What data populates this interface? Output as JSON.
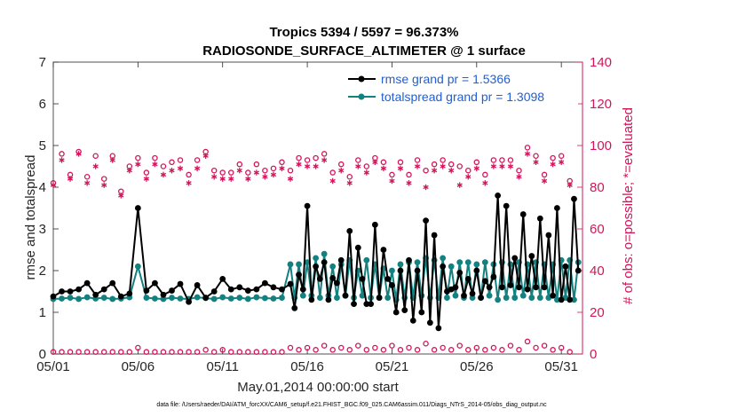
{
  "chart_data": {
    "type": "line",
    "title": [
      "Tropics 5394 / 5597 = 96.373%",
      "RADIOSONDE_SURFACE_ALTIMETER @ 1 surface"
    ],
    "xlabel": "May.01,2014 00:00:00 start",
    "ylabel_left": "rmse and totalspread",
    "ylabel_right": "# of obs: o=possible; *=evaluated",
    "x_ticks": [
      1,
      6,
      11,
      16,
      21,
      26,
      31
    ],
    "x_tick_labels": [
      "05/01",
      "05/06",
      "05/11",
      "05/16",
      "05/21",
      "05/26",
      "05/31"
    ],
    "xlim": [
      1,
      32.25
    ],
    "ylim_left": [
      0,
      7
    ],
    "y_ticks_left": [
      "0",
      "1",
      "2",
      "3",
      "4",
      "5",
      "6",
      "7"
    ],
    "ylim_right": [
      0,
      140
    ],
    "y_ticks_right": [
      "0",
      "20",
      "40",
      "60",
      "80",
      "100",
      "120",
      "140"
    ],
    "colors": {
      "rmse": "#000000",
      "spread": "#13817f",
      "obs": "#d4145a",
      "legend_text": "#1f5fd6"
    },
    "legend_placement": "top-right",
    "legend": [
      "rmse grand pr = 1.5366",
      "totalspread grand pr = 1.3098"
    ],
    "footer": "data file: /Users/raeder/DAI/ATM_forcXX/CAM6_setup/f.e21.FHIST_BGC.f09_025.CAM6assim.011/Diags_NTrS_2014-05/obs_diag_output.nc",
    "series": [
      {
        "name": "rmse",
        "x": [
          1,
          1.5,
          2,
          2.5,
          3,
          3.5,
          4,
          4.5,
          5,
          5.5,
          6,
          6.5,
          7,
          7.5,
          8,
          8.5,
          9,
          9.5,
          10,
          10.5,
          11,
          11.5,
          12,
          12.5,
          13,
          13.5,
          14,
          14.5,
          15,
          15.25,
          15.5,
          15.75,
          16,
          16.25,
          16.5,
          16.75,
          17,
          17.25,
          17.5,
          17.75,
          18,
          18.25,
          18.5,
          18.75,
          19,
          19.25,
          19.5,
          19.75,
          20,
          20.25,
          20.5,
          20.75,
          21,
          21.25,
          21.5,
          21.75,
          22,
          22.25,
          22.5,
          22.75,
          23,
          23.25,
          23.5,
          23.75,
          24,
          24.25,
          24.5,
          24.75,
          25,
          25.25,
          25.5,
          25.75,
          26,
          26.25,
          26.5,
          26.75,
          27,
          27.25,
          27.5,
          27.75,
          28,
          28.25,
          28.5,
          28.75,
          29,
          29.25,
          29.5,
          29.75,
          30,
          30.25,
          30.5,
          30.75,
          31,
          31.25,
          31.5,
          31.75,
          32
        ],
        "values": [
          1.38,
          1.5,
          1.5,
          1.55,
          1.7,
          1.42,
          1.55,
          1.7,
          1.38,
          1.45,
          3.5,
          1.52,
          1.7,
          1.42,
          1.52,
          1.68,
          1.25,
          1.65,
          1.35,
          1.5,
          1.8,
          1.55,
          1.6,
          1.52,
          1.55,
          1.7,
          1.6,
          1.55,
          1.68,
          1.1,
          1.9,
          1.55,
          3.55,
          1.3,
          2.1,
          1.8,
          2.2,
          1.3,
          1.82,
          1.7,
          2.25,
          1.4,
          2.95,
          1.2,
          2.55,
          1.8,
          1.2,
          1.2,
          3.1,
          1.35,
          2.5,
          1.8,
          1.65,
          1.0,
          2.0,
          1.05,
          2.25,
          0.8,
          2.0,
          1.0,
          3.2,
          0.75,
          2.85,
          0.62,
          2.1,
          1.5,
          1.55,
          1.6,
          1.95,
          1.4,
          1.8,
          1.45,
          2.0,
          1.35,
          1.75,
          1.6,
          1.85,
          3.8,
          1.6,
          3.55,
          1.65,
          2.3,
          1.6,
          3.35,
          1.55,
          2.35,
          1.6,
          3.25,
          1.6,
          2.85,
          1.4,
          3.5,
          1.3,
          2.1,
          1.3,
          3.72,
          2.0
        ]
      },
      {
        "name": "totalspread",
        "x": [
          1,
          1.5,
          2,
          2.5,
          3,
          3.5,
          4,
          4.5,
          5,
          5.5,
          6,
          6.5,
          7,
          7.5,
          8,
          8.5,
          9,
          9.5,
          10,
          10.5,
          11,
          11.5,
          12,
          12.5,
          13,
          13.5,
          14,
          14.5,
          15,
          15.25,
          15.5,
          15.75,
          16,
          16.25,
          16.5,
          16.75,
          17,
          17.25,
          17.5,
          17.75,
          18,
          18.25,
          18.5,
          18.75,
          19,
          19.25,
          19.5,
          19.75,
          20,
          20.25,
          20.5,
          20.75,
          21,
          21.25,
          21.5,
          21.75,
          22,
          22.25,
          22.5,
          22.75,
          23,
          23.25,
          23.5,
          23.75,
          24,
          24.25,
          24.5,
          24.75,
          25,
          25.25,
          25.5,
          25.75,
          26,
          26.25,
          26.5,
          26.75,
          27,
          27.25,
          27.5,
          27.75,
          28,
          28.25,
          28.5,
          28.75,
          29,
          29.25,
          29.5,
          29.75,
          30,
          30.25,
          30.5,
          30.75,
          31,
          31.25,
          31.5,
          31.75,
          32
        ],
        "values": [
          1.32,
          1.33,
          1.35,
          1.32,
          1.36,
          1.33,
          1.35,
          1.32,
          1.33,
          1.36,
          2.1,
          1.35,
          1.33,
          1.32,
          1.35,
          1.33,
          1.32,
          1.36,
          1.34,
          1.32,
          1.36,
          1.33,
          1.35,
          1.32,
          1.36,
          1.34,
          1.33,
          1.35,
          2.15,
          1.35,
          2.15,
          1.4,
          2.2,
          1.4,
          2.3,
          1.35,
          2.4,
          1.4,
          2.1,
          1.35,
          2.15,
          1.4,
          2.25,
          1.35,
          2.0,
          1.4,
          2.25,
          1.35,
          2.15,
          1.35,
          2.05,
          1.35,
          2.0,
          1.3,
          2.15,
          1.35,
          2.2,
          1.35,
          2.2,
          1.4,
          2.3,
          1.35,
          2.25,
          1.35,
          2.3,
          1.35,
          2.1,
          1.4,
          2.2,
          1.35,
          2.2,
          1.35,
          2.15,
          1.35,
          2.2,
          1.4,
          2.15,
          1.3,
          2.2,
          1.35,
          2.15,
          1.35,
          2.2,
          1.4,
          2.15,
          1.35,
          2.2,
          1.35,
          2.15,
          1.35,
          2.15,
          1.3,
          2.25,
          1.35,
          2.25,
          1.3,
          2.2
        ]
      },
      {
        "name": "obs_possible",
        "x": [
          1,
          1.5,
          2,
          2.5,
          3,
          3.5,
          4,
          4.5,
          5,
          5.5,
          6,
          6.5,
          7,
          7.5,
          8,
          8.5,
          9,
          9.5,
          10,
          10.5,
          11,
          11.5,
          12,
          12.5,
          13,
          13.5,
          14,
          14.5,
          15,
          15.5,
          16,
          16.5,
          17,
          17.5,
          18,
          18.5,
          19,
          19.5,
          20,
          20.5,
          21,
          21.5,
          22,
          22.5,
          23,
          23.5,
          24,
          24.5,
          25,
          25.5,
          26,
          26.5,
          27,
          27.5,
          28,
          28.5,
          29,
          29.5,
          30,
          30.5,
          31,
          31.5
        ],
        "values": [
          82,
          96,
          86,
          97,
          85,
          95,
          84,
          95,
          78,
          90,
          94,
          87,
          94,
          90,
          92,
          93,
          86,
          93,
          97,
          88,
          87,
          87,
          91,
          87,
          91,
          88,
          89,
          92,
          88,
          94,
          93,
          94,
          96,
          87,
          91,
          85,
          93,
          90,
          94,
          92,
          86,
          92,
          86,
          93,
          88,
          91,
          93,
          91,
          90,
          88,
          92,
          86,
          93,
          93,
          93,
          88,
          99,
          95,
          86,
          94,
          95,
          83
        ],
        "markers": "circle"
      },
      {
        "name": "obs_evaluated",
        "x": [
          1,
          1.5,
          2,
          2.5,
          3,
          3.5,
          4,
          4.5,
          5,
          5.5,
          6,
          6.5,
          7,
          7.5,
          8,
          8.5,
          9,
          9.5,
          10,
          10.5,
          11,
          11.5,
          12,
          12.5,
          13,
          13.5,
          14,
          14.5,
          15,
          15.5,
          16,
          16.5,
          17,
          17.5,
          18,
          18.5,
          19,
          19.5,
          20,
          20.5,
          21,
          21.5,
          22,
          22.5,
          23,
          23.5,
          24,
          24.5,
          25,
          25.5,
          26,
          26.5,
          27,
          27.5,
          28,
          28.5,
          29,
          29.5,
          30,
          30.5,
          31,
          31.5
        ],
        "values": [
          81,
          93,
          84,
          96,
          82,
          90,
          81,
          93,
          76,
          88,
          91,
          84,
          91,
          86,
          88,
          89,
          82,
          89,
          95,
          85,
          84,
          84,
          88,
          84,
          87,
          85,
          86,
          89,
          84,
          91,
          90,
          90,
          93,
          83,
          88,
          82,
          90,
          87,
          92,
          89,
          83,
          89,
          82,
          90,
          80,
          88,
          90,
          88,
          81,
          85,
          89,
          82,
          90,
          90,
          90,
          85,
          96,
          92,
          83,
          91,
          92,
          81
        ],
        "markers": "asterisk"
      },
      {
        "name": "obs_possible_bottom",
        "x": [
          1,
          1.5,
          2,
          2.5,
          3,
          3.5,
          4,
          4.5,
          5,
          5.5,
          6,
          6.5,
          7,
          7.5,
          8,
          8.5,
          9,
          9.5,
          10,
          10.5,
          11,
          11.5,
          12,
          12.5,
          13,
          13.5,
          14,
          14.5,
          15,
          15.5,
          16,
          16.5,
          17,
          17.5,
          18,
          18.5,
          19,
          19.5,
          20,
          20.5,
          21,
          21.5,
          22,
          22.5,
          23,
          23.5,
          24,
          24.5,
          25,
          25.5,
          26,
          26.5,
          27,
          27.5,
          28,
          28.5,
          29,
          29.5,
          30,
          30.5,
          31,
          31.5
        ],
        "values": [
          1,
          1,
          1,
          1,
          1,
          1,
          1,
          1,
          1,
          1,
          3,
          1,
          1,
          1,
          1,
          1,
          1,
          1,
          2,
          1,
          2,
          1,
          1,
          1,
          1,
          1,
          1,
          1,
          3,
          2,
          3,
          2,
          4,
          2,
          3,
          2,
          4,
          2,
          3,
          2,
          4,
          2,
          3,
          2,
          5,
          2,
          3,
          2,
          4,
          2,
          3,
          2,
          3,
          2,
          4,
          2,
          6,
          3,
          4,
          2,
          3,
          1
        ],
        "markers": "circle"
      }
    ]
  }
}
